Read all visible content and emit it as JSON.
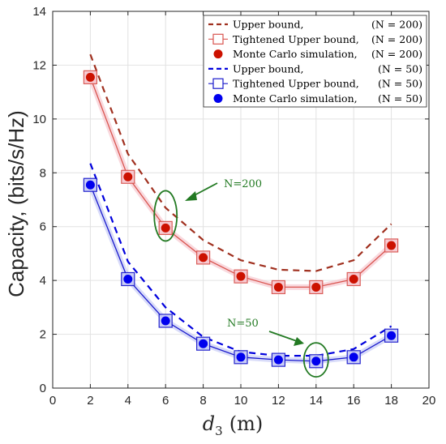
{
  "chart_data": {
    "type": "line",
    "xlabel": "d",
    "xlabel_sub": "3",
    "xlabel_unit": "(m)",
    "ylabel": "Capacity, (bits/s/Hz)",
    "xlim": [
      0,
      20
    ],
    "ylim": [
      0,
      14
    ],
    "xticks": [
      0,
      2,
      4,
      6,
      8,
      10,
      12,
      14,
      16,
      18,
      20
    ],
    "yticks": [
      0,
      2,
      4,
      6,
      8,
      10,
      12,
      14
    ],
    "grid": true,
    "legend_position": "top-right",
    "x": [
      2,
      4,
      6,
      8,
      10,
      12,
      14,
      16,
      18
    ],
    "series": [
      {
        "name": "Upper bound,",
        "tag": "(N = 200)",
        "style": "dashed",
        "color": "#a0301f",
        "values": [
          12.4,
          8.7,
          6.7,
          5.5,
          4.75,
          4.4,
          4.35,
          4.75,
          6.1
        ]
      },
      {
        "name": "Tightened Upper bound,",
        "tag": "(N = 200)",
        "style": "solid-square",
        "color": "#d95550",
        "values": [
          11.55,
          7.85,
          5.95,
          4.85,
          4.15,
          3.75,
          3.75,
          4.05,
          5.3
        ]
      },
      {
        "name": "Monte Carlo simulation,",
        "tag": "(N = 200)",
        "style": "dot",
        "color": "#cc1100",
        "values": [
          11.55,
          7.85,
          5.95,
          4.85,
          4.15,
          3.75,
          3.75,
          4.05,
          5.3
        ]
      },
      {
        "name": "Upper bound,",
        "tag": "(N = 50)",
        "style": "dashed",
        "color": "#0000dd",
        "values": [
          8.35,
          4.7,
          3.0,
          1.9,
          1.35,
          1.2,
          1.2,
          1.45,
          2.3
        ]
      },
      {
        "name": "Tightened Upper bound,",
        "tag": "(N = 50)",
        "style": "solid-square",
        "color": "#1a1acc",
        "values": [
          7.55,
          4.05,
          2.5,
          1.65,
          1.15,
          1.05,
          1.0,
          1.15,
          1.95
        ]
      },
      {
        "name": "Monte Carlo simulation,",
        "tag": "(N = 50)",
        "style": "dot",
        "color": "#0000ee",
        "values": [
          7.55,
          4.05,
          2.5,
          1.65,
          1.15,
          1.05,
          1.0,
          1.15,
          1.95
        ]
      }
    ],
    "annotations": [
      {
        "text": "N=200",
        "target": [
          6,
          6.4
        ],
        "color": "#237a23"
      },
      {
        "text": "N=50",
        "target": [
          14,
          1.0
        ],
        "color": "#237a23"
      }
    ]
  }
}
